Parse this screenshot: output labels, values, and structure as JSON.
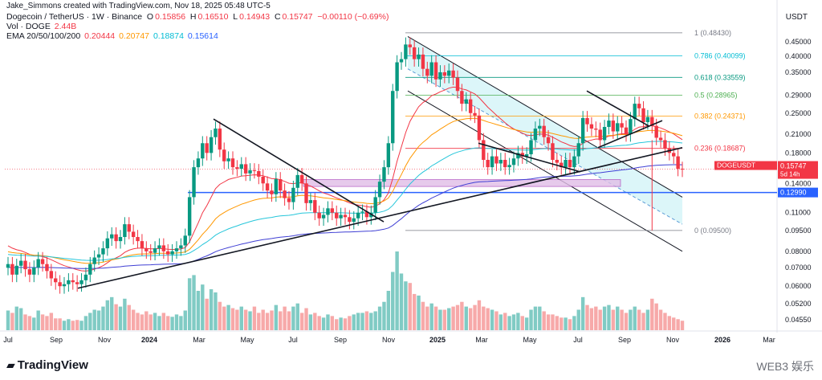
{
  "header": {
    "attribution": "Jake_Simmons created with TradingView.com, Nov 18, 2025 05:48 UTC-5",
    "symbol_line": "Dogecoin / TetherUS · 1W · Binance",
    "ohlc": {
      "o_label": "O",
      "o": "0.15856",
      "h_label": "H",
      "h": "0.16510",
      "l_label": "L",
      "l": "0.14943",
      "c_label": "C",
      "c": "0.15747",
      "change": "−0.00110 (−0.69%)"
    },
    "vol_label": "Vol · DOGE",
    "vol_value": "2.44B",
    "ema_label": "EMA 20/50/100/200",
    "ema_values": [
      "0.20444",
      "0.20747",
      "0.18874",
      "0.15614"
    ]
  },
  "currency": "USDT",
  "logo_text": "TradingView",
  "watermark": "WEB3 娱乐",
  "chart_data": {
    "type": "candlestick",
    "y_scale": "log",
    "ylim": [
      0.042,
      0.51
    ],
    "y_ticks": [
      "0.45000",
      "0.40000",
      "0.35000",
      "0.29000",
      "0.25000",
      "0.21000",
      "0.18000",
      "0.14000",
      "0.11000",
      "0.09500",
      "0.08000",
      "0.07000",
      "0.06000",
      "0.05200",
      "0.04550"
    ],
    "x_ticks": [
      "Jul",
      "Sep",
      "Nov",
      "2024",
      "Mar",
      "May",
      "Jul",
      "Sep",
      "Nov",
      "2025",
      "Mar",
      "May",
      "Jul",
      "Sep",
      "Nov",
      "2026",
      "Mar"
    ],
    "price_tags": [
      {
        "label": "DOGEUSDT",
        "value": "0.15747",
        "countdown": "5d 14h",
        "color": "#f23645"
      },
      {
        "label": "",
        "value": "0.12990",
        "color": "#2962ff"
      }
    ],
    "fib_levels": [
      {
        "ratio": "1",
        "value": 0.4843,
        "label": "1 (0.48430)",
        "color": "#787b86"
      },
      {
        "ratio": "0.786",
        "value": 0.40099,
        "label": "0.786 (0.40099)",
        "color": "#00bcd4"
      },
      {
        "ratio": "0.618",
        "value": 0.33559,
        "label": "0.618 (0.33559)",
        "color": "#089981"
      },
      {
        "ratio": "0.5",
        "value": 0.28965,
        "label": "0.5 (0.28965)",
        "color": "#4caf50"
      },
      {
        "ratio": "0.382",
        "value": 0.24371,
        "label": "0.382 (0.24371)",
        "color": "#ff9800"
      },
      {
        "ratio": "0.236",
        "value": 0.18687,
        "label": "0.236 (0.18687)",
        "color": "#f23645"
      },
      {
        "ratio": "0",
        "value": 0.095,
        "label": "0 (0.09500)",
        "color": "#787b86"
      }
    ],
    "support_zone": [
      0.1365,
      0.1445
    ],
    "horizontal_support": 0.1299,
    "candles_weekly_close": [
      0.072,
      0.066,
      0.071,
      0.074,
      0.069,
      0.066,
      0.07,
      0.075,
      0.072,
      0.068,
      0.064,
      0.062,
      0.06,
      0.061,
      0.063,
      0.062,
      0.061,
      0.063,
      0.066,
      0.072,
      0.076,
      0.078,
      0.082,
      0.089,
      0.092,
      0.087,
      0.09,
      0.1,
      0.094,
      0.09,
      0.087,
      0.082,
      0.08,
      0.079,
      0.082,
      0.084,
      0.08,
      0.078,
      0.08,
      0.082,
      0.084,
      0.091,
      0.125,
      0.16,
      0.172,
      0.195,
      0.18,
      0.205,
      0.22,
      0.185,
      0.168,
      0.172,
      0.16,
      0.158,
      0.164,
      0.152,
      0.156,
      0.155,
      0.148,
      0.14,
      0.132,
      0.128,
      0.145,
      0.132,
      0.124,
      0.12,
      0.135,
      0.15,
      0.14,
      0.119,
      0.122,
      0.11,
      0.105,
      0.108,
      0.114,
      0.11,
      0.105,
      0.108,
      0.106,
      0.102,
      0.105,
      0.11,
      0.111,
      0.106,
      0.11,
      0.125,
      0.142,
      0.16,
      0.195,
      0.3,
      0.38,
      0.39,
      0.44,
      0.43,
      0.39,
      0.405,
      0.36,
      0.34,
      0.38,
      0.33,
      0.35,
      0.34,
      0.355,
      0.335,
      0.3,
      0.27,
      0.28,
      0.25,
      0.245,
      0.2,
      0.17,
      0.16,
      0.175,
      0.165,
      0.17,
      0.16,
      0.163,
      0.172,
      0.18,
      0.175,
      0.178,
      0.2,
      0.22,
      0.225,
      0.205,
      0.195,
      0.17,
      0.166,
      0.16,
      0.17,
      0.16,
      0.175,
      0.195,
      0.24,
      0.228,
      0.22,
      0.218,
      0.2,
      0.223,
      0.235,
      0.215,
      0.23,
      0.222,
      0.21,
      0.238,
      0.27,
      0.26,
      0.232,
      0.242,
      0.225,
      0.204,
      0.2,
      0.187,
      0.18,
      0.175,
      0.158,
      0.157
    ],
    "volume_relative": [
      0.25,
      0.22,
      0.3,
      0.28,
      0.2,
      0.18,
      0.16,
      0.25,
      0.2,
      0.18,
      0.22,
      0.15,
      0.15,
      0.12,
      0.14,
      0.12,
      0.13,
      0.12,
      0.18,
      0.22,
      0.26,
      0.25,
      0.3,
      0.38,
      0.42,
      0.33,
      0.3,
      0.4,
      0.32,
      0.26,
      0.22,
      0.2,
      0.24,
      0.2,
      0.22,
      0.18,
      0.22,
      0.18,
      0.17,
      0.2,
      0.18,
      0.25,
      0.66,
      0.7,
      0.5,
      0.58,
      0.4,
      0.52,
      0.48,
      0.36,
      0.3,
      0.32,
      0.28,
      0.26,
      0.3,
      0.26,
      0.24,
      0.3,
      0.22,
      0.26,
      0.22,
      0.25,
      0.32,
      0.24,
      0.3,
      0.24,
      0.3,
      0.34,
      0.22,
      0.28,
      0.2,
      0.22,
      0.18,
      0.16,
      0.2,
      0.18,
      0.14,
      0.16,
      0.15,
      0.18,
      0.2,
      0.22,
      0.22,
      0.24,
      0.22,
      0.24,
      0.3,
      0.36,
      0.5,
      0.74,
      1.0,
      0.72,
      0.62,
      0.6,
      0.46,
      0.44,
      0.36,
      0.3,
      0.34,
      0.3,
      0.26,
      0.26,
      0.28,
      0.3,
      0.32,
      0.36,
      0.3,
      0.28,
      0.32,
      0.38,
      0.3,
      0.28,
      0.26,
      0.24,
      0.2,
      0.22,
      0.18,
      0.2,
      0.22,
      0.18,
      0.16,
      0.26,
      0.3,
      0.3,
      0.24,
      0.2,
      0.2,
      0.18,
      0.16,
      0.16,
      0.14,
      0.18,
      0.26,
      0.42,
      0.32,
      0.28,
      0.3,
      0.26,
      0.3,
      0.32,
      0.26,
      0.3,
      0.26,
      0.22,
      0.26,
      0.3,
      0.26,
      0.22,
      0.26,
      0.4,
      0.34,
      0.26,
      0.22,
      0.18,
      0.16,
      0.14,
      0.12
    ]
  }
}
